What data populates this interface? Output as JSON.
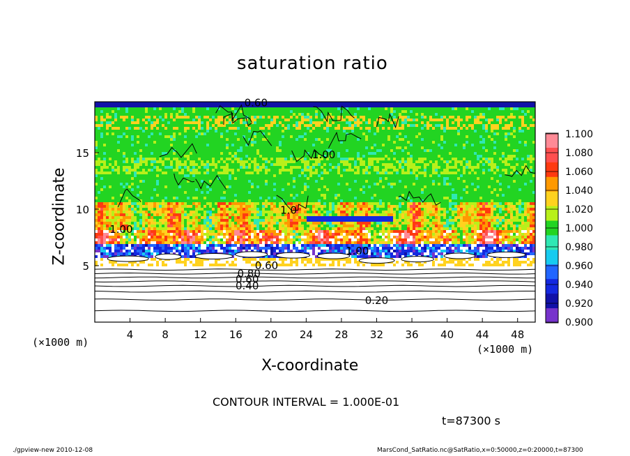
{
  "title": "saturation ratio",
  "xlabel": "X-coordinate",
  "ylabel": "Z-coordinate",
  "x_unit_left": "(×1000 m)",
  "x_unit_right": "(×1000 m)",
  "contour_interval": "CONTOUR INTERVAL = 1.000E-01",
  "time_label": "t=87300 s",
  "footer_left": "./gpview-new   2010-12-08",
  "footer_right": "MarsCond_SatRatio.nc@SatRatio,x=0:50000,z=0:20000,t=87300",
  "chart_data": {
    "type": "heatmap",
    "title": "saturation ratio",
    "xlabel": "X-coordinate",
    "ylabel": "Z-coordinate",
    "xlim": [
      0,
      50
    ],
    "ylim": [
      0,
      19.5
    ],
    "x_ticks": [
      4,
      8,
      12,
      16,
      20,
      24,
      28,
      32,
      36,
      40,
      44,
      48
    ],
    "y_ticks": [
      5,
      10,
      15
    ],
    "colorbar": {
      "labels": [
        "1.100",
        "1.080",
        "1.060",
        "1.040",
        "1.020",
        "1.000",
        "0.980",
        "0.960",
        "0.940",
        "0.920",
        "0.900"
      ],
      "values": [
        1.1,
        1.08,
        1.06,
        1.04,
        1.02,
        1.0,
        0.98,
        0.96,
        0.94,
        0.92,
        0.9
      ],
      "colors": [
        "#ff8a96",
        "#ff4f4f",
        "#ff3a10",
        "#ff9900",
        "#ffd21f",
        "#b8f01a",
        "#22d422",
        "#2fe8b4",
        "#17cbf0",
        "#2266ff",
        "#1428e0",
        "#1111a8",
        "#7733cc"
      ]
    },
    "contour_labels": [
      {
        "text": "0.60",
        "x": 18.3,
        "z": 19.4
      },
      {
        "text": "1.00",
        "x": 26.0,
        "z": 14.8
      },
      {
        "text": "1.0",
        "x": 22.0,
        "z": 9.9
      },
      {
        "text": "1.00",
        "x": 3.0,
        "z": 8.2
      },
      {
        "text": "1.00",
        "x": 29.8,
        "z": 6.3
      },
      {
        "text": "0.60",
        "x": 19.5,
        "z": 5.0
      },
      {
        "text": "0.80",
        "x": 17.5,
        "z": 4.3
      },
      {
        "text": "0.60",
        "x": 17.3,
        "z": 3.8
      },
      {
        "text": "0.40",
        "x": 17.3,
        "z": 3.2
      },
      {
        "text": "0.20",
        "x": 32.0,
        "z": 1.9
      }
    ],
    "subsaturated_levels": [
      0.2,
      0.3,
      0.4,
      0.5,
      0.6,
      0.7,
      0.8,
      0.9
    ],
    "contour_interval": 0.1,
    "time": 87300
  }
}
